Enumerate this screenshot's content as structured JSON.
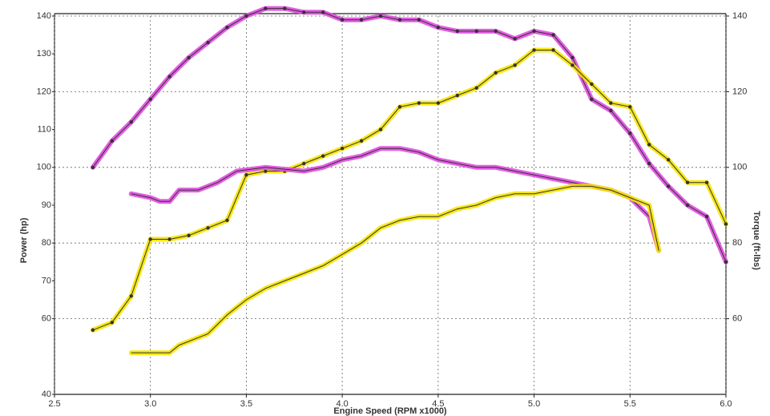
{
  "chart_data": {
    "type": "line",
    "x_label": "Engine Speed (RPM x1000)",
    "y_label": "Power (hp)",
    "y2_label": "Torque (ft-lbs)",
    "xlim": [
      2.5,
      6.0
    ],
    "xticks": [
      2.5,
      {
        "value": 3,
        "label": "3.0"
      },
      3.5,
      {
        "value": 4,
        "label": "4.0"
      },
      4.5,
      {
        "value": 5,
        "label": "5.0"
      },
      5.5,
      {
        "value": 6,
        "label": "6.0"
      }
    ],
    "ylim": [
      40,
      140
    ],
    "yticks": [
      40,
      60,
      70,
      80,
      90,
      100,
      110,
      120,
      130,
      140
    ],
    "y2lim": [
      40,
      140
    ],
    "y2ticks": [
      60,
      80,
      100,
      120,
      140
    ],
    "grid": true,
    "series": [
      {
        "color": "#e04be0",
        "markers": true,
        "x": [
          2.7,
          2.8,
          2.9,
          3.0,
          3.1,
          3.2,
          3.3,
          3.4,
          3.5,
          3.6,
          3.7,
          3.8,
          3.9,
          4.0,
          4.1,
          4.2,
          4.3,
          4.4,
          4.5,
          4.6,
          4.7,
          4.8,
          4.9,
          5.0,
          5.1,
          5.2,
          5.3,
          5.4,
          5.5,
          5.6,
          5.7,
          5.8,
          5.9,
          6.0
        ],
        "values": [
          100,
          107,
          112,
          118,
          124,
          129,
          133,
          137,
          140,
          142,
          142,
          141,
          141,
          139,
          139,
          140,
          139,
          139,
          137,
          136,
          136,
          136,
          134,
          136,
          135,
          129,
          118,
          115,
          109,
          101,
          95,
          90,
          87,
          75
        ]
      },
      {
        "color": "#f5e400",
        "markers": true,
        "x": [
          2.7,
          2.8,
          2.9,
          3.0,
          3.1,
          3.2,
          3.3,
          3.4,
          3.5,
          3.6,
          3.7,
          3.8,
          3.9,
          4.0,
          4.1,
          4.2,
          4.3,
          4.4,
          4.5,
          4.6,
          4.7,
          4.8,
          4.9,
          5.0,
          5.1,
          5.2,
          5.3,
          5.4,
          5.5,
          5.6,
          5.7,
          5.8,
          5.9,
          6.0
        ],
        "values": [
          57,
          59,
          66,
          81,
          81,
          82,
          84,
          86,
          98,
          99,
          99,
          101,
          103,
          105,
          107,
          110,
          116,
          117,
          117,
          119,
          121,
          125,
          127,
          131,
          131,
          127,
          122,
          117,
          116,
          106,
          102,
          96,
          96,
          85
        ]
      },
      {
        "color": "#e04be0",
        "markers": false,
        "x": [
          2.9,
          3.0,
          3.05,
          3.1,
          3.15,
          3.25,
          3.35,
          3.45,
          3.6,
          3.8,
          3.9,
          4.0,
          4.1,
          4.2,
          4.3,
          4.4,
          4.5,
          4.6,
          4.7,
          4.8,
          5.0,
          5.1,
          5.2,
          5.3,
          5.4,
          5.5,
          5.6,
          5.65
        ],
        "values": [
          93,
          92,
          91,
          91,
          94,
          94,
          96,
          99,
          100,
          99,
          100,
          102,
          103,
          105,
          105,
          104,
          102,
          101,
          100,
          100,
          98,
          97,
          96,
          95,
          94,
          92,
          87,
          78
        ]
      },
      {
        "color": "#f5e400",
        "markers": false,
        "x": [
          2.9,
          3.0,
          3.1,
          3.15,
          3.3,
          3.4,
          3.5,
          3.6,
          3.7,
          3.8,
          3.9,
          4.0,
          4.1,
          4.2,
          4.3,
          4.4,
          4.5,
          4.6,
          4.7,
          4.8,
          4.9,
          5.0,
          5.1,
          5.2,
          5.3,
          5.4,
          5.5,
          5.6,
          5.65
        ],
        "values": [
          51,
          51,
          51,
          53,
          56,
          61,
          65,
          68,
          70,
          72,
          74,
          77,
          80,
          84,
          86,
          87,
          87,
          89,
          90,
          92,
          93,
          93,
          94,
          95,
          95,
          94,
          92,
          90,
          78
        ]
      }
    ]
  }
}
